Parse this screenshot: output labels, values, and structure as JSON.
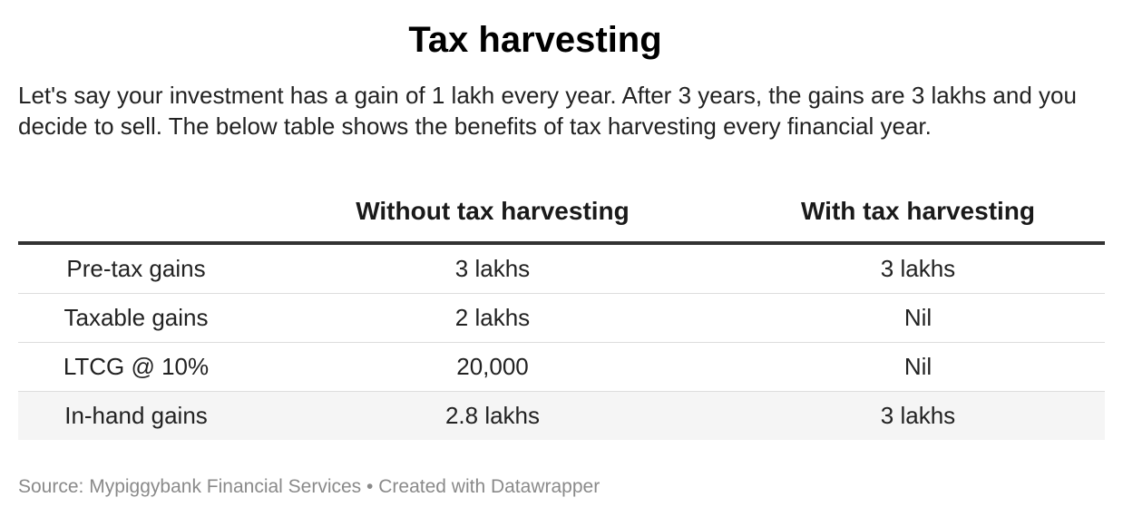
{
  "title": "Tax harvesting",
  "description": "Let's say your investment has a gain of 1 lakh every year. After 3 years, the gains are 3 lakhs and you decide to sell. The below table shows the benefits of tax harvesting every financial year.",
  "chart_data": {
    "type": "table",
    "title": "Tax harvesting",
    "columns": [
      "",
      "Without tax harvesting",
      "With tax harvesting"
    ],
    "rows": [
      [
        "Pre-tax gains",
        "3 lakhs",
        "3 lakhs"
      ],
      [
        "Taxable gains",
        "2 lakhs",
        "Nil"
      ],
      [
        "LTCG @ 10%",
        "20,000",
        "Nil"
      ],
      [
        "In-hand gains",
        "2.8 lakhs",
        "3 lakhs"
      ]
    ]
  },
  "footer": {
    "source_label": "Source:",
    "source_name": "Mypiggybank Financial Services",
    "separator": "•",
    "credit": "Created with Datawrapper"
  },
  "colors": {
    "header_rule": "#333333",
    "row_divider": "#dddddd",
    "row_shade": "#f5f5f5",
    "footer_text": "#8a8a8a"
  }
}
